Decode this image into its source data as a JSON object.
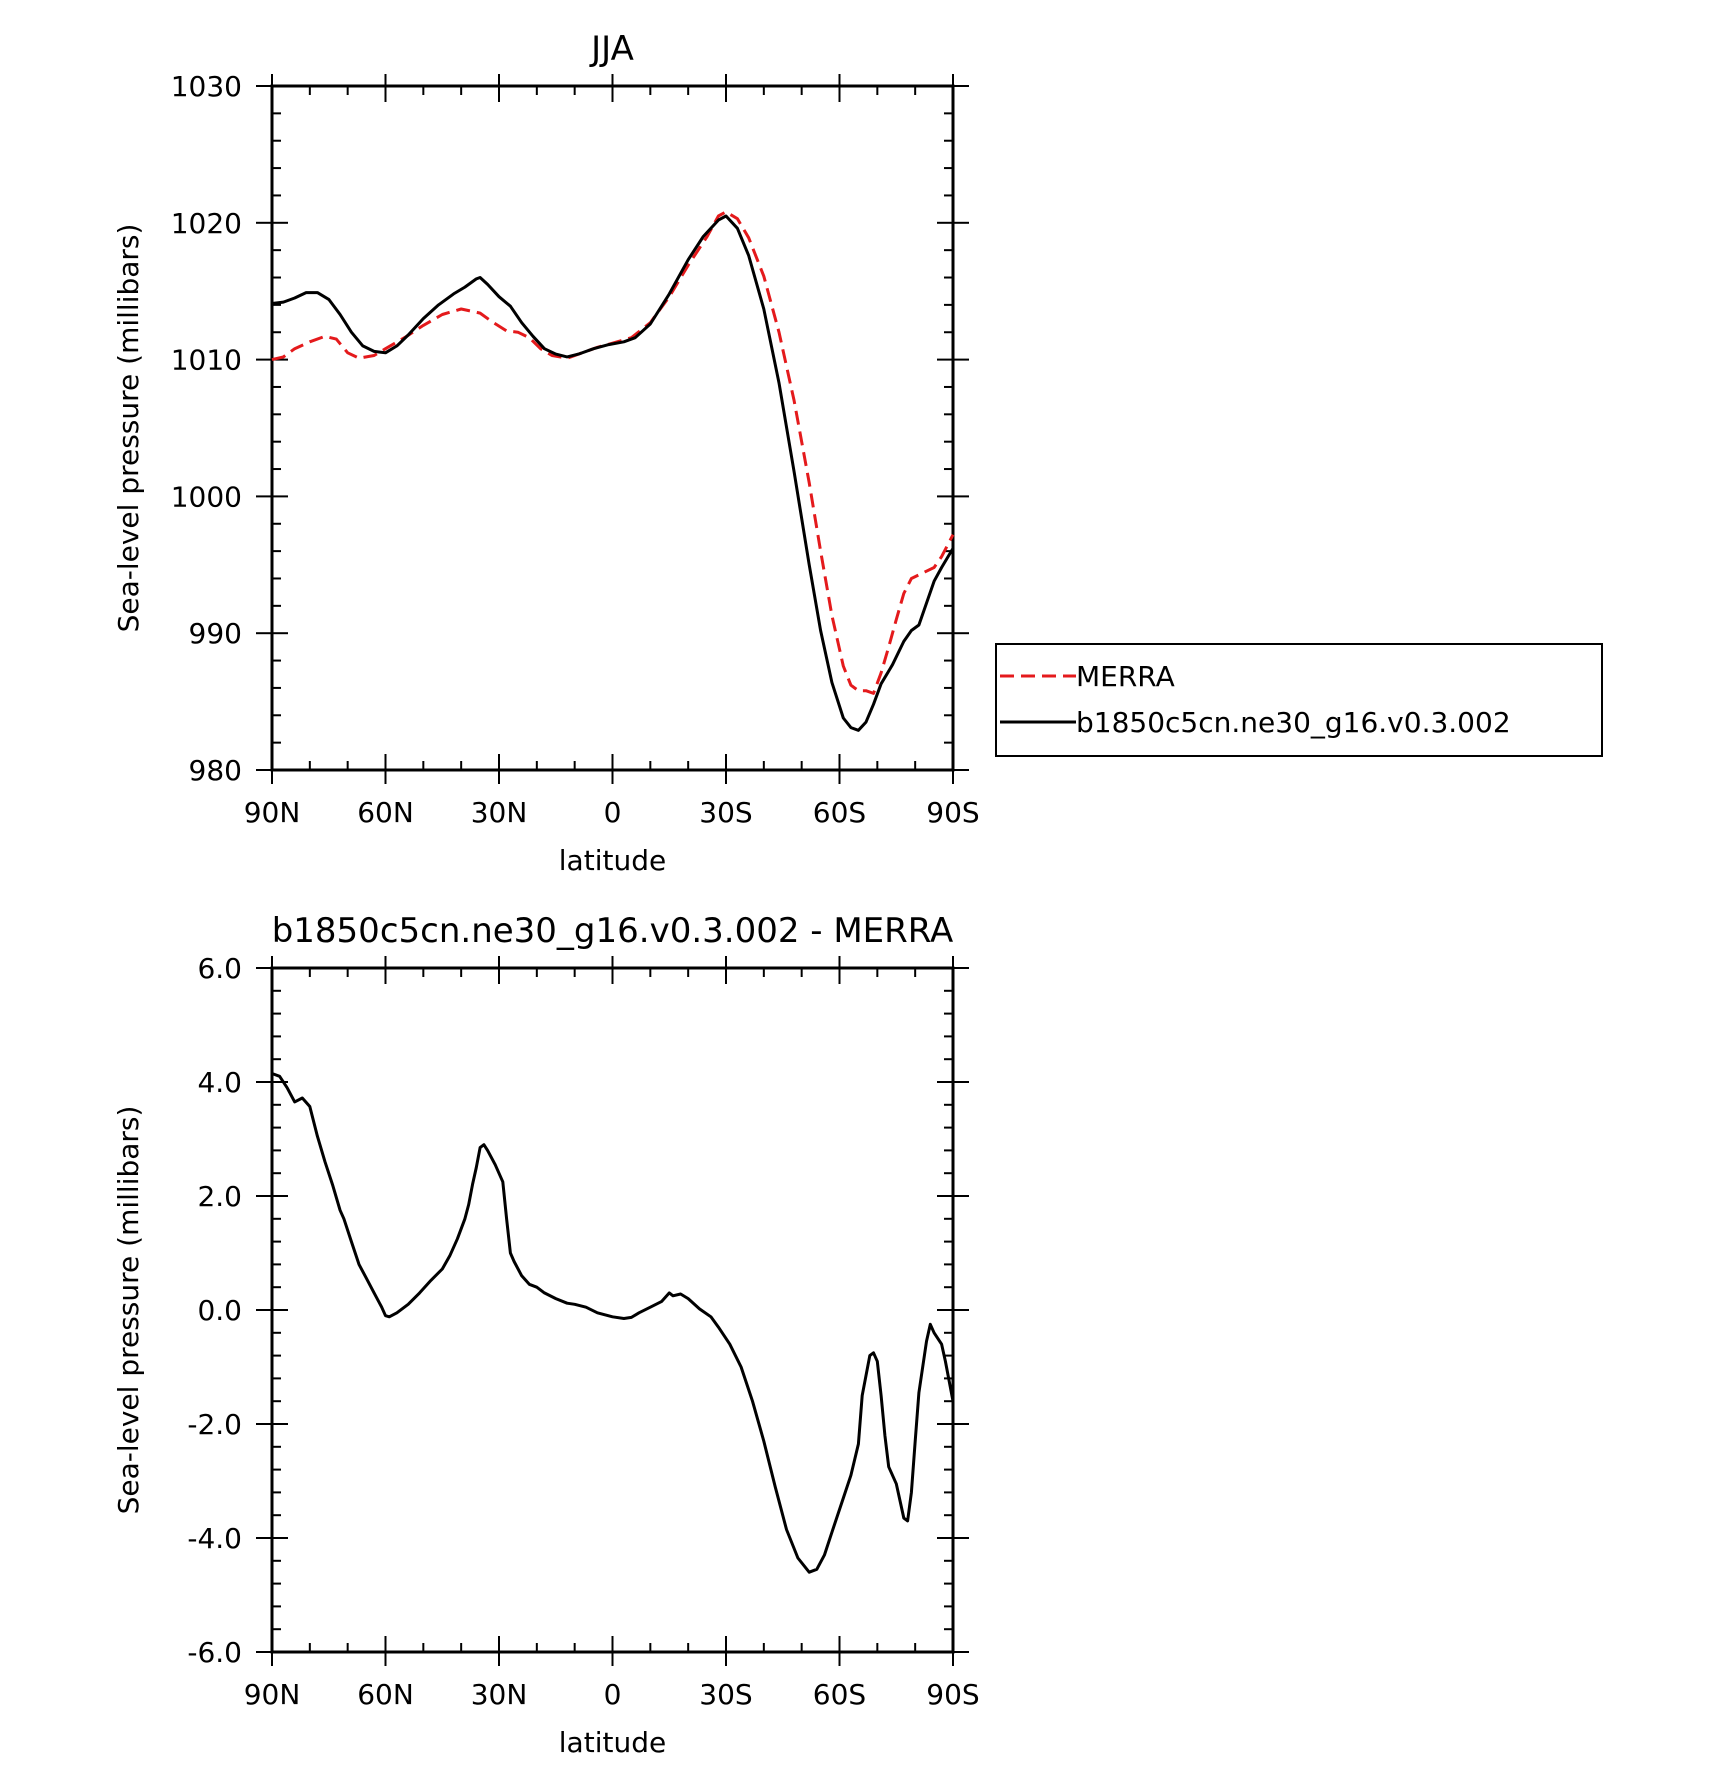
{
  "chart_data": [
    {
      "type": "line",
      "title": "JJA",
      "xlabel": "latitude",
      "ylabel": "Sea-level pressure (millibars)",
      "xlim": [
        90,
        -90
      ],
      "ylim": [
        980,
        1030
      ],
      "x_ticks": [
        90,
        60,
        30,
        0,
        -30,
        -60,
        -90
      ],
      "x_tick_labels": [
        "90N",
        "60N",
        "30N",
        "0",
        "30S",
        "60S",
        "90S"
      ],
      "y_ticks": [
        980,
        990,
        1000,
        1010,
        1020,
        1030
      ],
      "y_tick_labels": [
        "980",
        "990",
        "1000",
        "1010",
        "1020",
        "1030"
      ],
      "legend": "right",
      "series": [
        {
          "name": "MERRA",
          "color": "#e41a1c",
          "style": "dashed",
          "points": [
            [
              90,
              1010
            ],
            [
              87,
              1010.2
            ],
            [
              84,
              1010.8
            ],
            [
              80,
              1011.3
            ],
            [
              76,
              1011.7
            ],
            [
              73,
              1011.5
            ],
            [
              70,
              1010.5
            ],
            [
              67,
              1010.1
            ],
            [
              63,
              1010.3
            ],
            [
              60,
              1010.8
            ],
            [
              55,
              1011.6
            ],
            [
              50,
              1012.5
            ],
            [
              45,
              1013.3
            ],
            [
              40,
              1013.7
            ],
            [
              35,
              1013.4
            ],
            [
              32,
              1012.8
            ],
            [
              28,
              1012.1
            ],
            [
              25,
              1012
            ],
            [
              22,
              1011.6
            ],
            [
              19,
              1010.8
            ],
            [
              16,
              1010.3
            ],
            [
              12,
              1010.1
            ],
            [
              8,
              1010.5
            ],
            [
              4,
              1010.9
            ],
            [
              0,
              1011.2
            ],
            [
              -5,
              1011.6
            ],
            [
              -10,
              1012.7
            ],
            [
              -15,
              1014.6
            ],
            [
              -20,
              1016.9
            ],
            [
              -25,
              1019
            ],
            [
              -28,
              1020.5
            ],
            [
              -30,
              1020.8
            ],
            [
              -33,
              1020.3
            ],
            [
              -36,
              1018.9
            ],
            [
              -40,
              1016.1
            ],
            [
              -44,
              1012
            ],
            [
              -48,
              1007
            ],
            [
              -52,
              1001
            ],
            [
              -55,
              996
            ],
            [
              -58,
              991.3
            ],
            [
              -61,
              987.6
            ],
            [
              -63,
              986.2
            ],
            [
              -65,
              985.8
            ],
            [
              -67,
              985.8
            ],
            [
              -69,
              985.6
            ],
            [
              -71,
              987.1
            ],
            [
              -73,
              989
            ],
            [
              -75,
              991
            ],
            [
              -77,
              992.9
            ],
            [
              -79,
              994
            ],
            [
              -82,
              994.4
            ],
            [
              -85,
              994.8
            ],
            [
              -87,
              995.6
            ],
            [
              -90,
              997.2
            ]
          ]
        },
        {
          "name": "b1850c5cn.ne30_g16.v0.3.002",
          "color": "#000000",
          "style": "solid",
          "points": [
            [
              90,
              1014.1
            ],
            [
              87,
              1014.2
            ],
            [
              84,
              1014.5
            ],
            [
              81,
              1014.9
            ],
            [
              78,
              1014.9
            ],
            [
              75,
              1014.4
            ],
            [
              72,
              1013.3
            ],
            [
              69,
              1012
            ],
            [
              66,
              1011
            ],
            [
              63,
              1010.6
            ],
            [
              60,
              1010.5
            ],
            [
              57,
              1011
            ],
            [
              54,
              1011.8
            ],
            [
              50,
              1013
            ],
            [
              46,
              1014
            ],
            [
              42,
              1014.8
            ],
            [
              39,
              1015.3
            ],
            [
              36,
              1015.9
            ],
            [
              35,
              1016
            ],
            [
              33,
              1015.5
            ],
            [
              30,
              1014.6
            ],
            [
              27,
              1013.9
            ],
            [
              24,
              1012.7
            ],
            [
              21,
              1011.7
            ],
            [
              18,
              1010.8
            ],
            [
              15,
              1010.4
            ],
            [
              12,
              1010.2
            ],
            [
              9,
              1010.4
            ],
            [
              5,
              1010.8
            ],
            [
              1,
              1011.1
            ],
            [
              -3,
              1011.3
            ],
            [
              -6,
              1011.6
            ],
            [
              -10,
              1012.6
            ],
            [
              -15,
              1014.8
            ],
            [
              -20,
              1017.3
            ],
            [
              -24,
              1019
            ],
            [
              -28,
              1020.2
            ],
            [
              -30,
              1020.5
            ],
            [
              -33,
              1019.6
            ],
            [
              -36,
              1017.6
            ],
            [
              -40,
              1013.7
            ],
            [
              -44,
              1008.3
            ],
            [
              -48,
              1001.8
            ],
            [
              -52,
              995
            ],
            [
              -55,
              990.2
            ],
            [
              -58,
              986.4
            ],
            [
              -61,
              983.8
            ],
            [
              -63,
              983.1
            ],
            [
              -65,
              982.9
            ],
            [
              -67,
              983.5
            ],
            [
              -69,
              984.8
            ],
            [
              -71,
              986.3
            ],
            [
              -74,
              987.7
            ],
            [
              -77,
              989.4
            ],
            [
              -79,
              990.2
            ],
            [
              -81,
              990.6
            ],
            [
              -83,
              992.2
            ],
            [
              -85,
              993.8
            ],
            [
              -87,
              994.8
            ],
            [
              -90,
              996.2
            ]
          ]
        }
      ]
    },
    {
      "type": "line",
      "title": "b1850c5cn.ne30_g16.v0.3.002 - MERRA",
      "xlabel": "latitude",
      "ylabel": "Sea-level pressure (millibars)",
      "xlim": [
        90,
        -90
      ],
      "ylim": [
        -6,
        6
      ],
      "x_ticks": [
        90,
        60,
        30,
        0,
        -30,
        -60,
        -90
      ],
      "x_tick_labels": [
        "90N",
        "60N",
        "30N",
        "0",
        "30S",
        "60S",
        "90S"
      ],
      "y_ticks": [
        -6,
        -4,
        -2,
        0,
        2,
        4,
        6
      ],
      "y_tick_labels": [
        "-6.0",
        "-4.0",
        "-2.0",
        "0.0",
        "2.0",
        "4.0",
        "6.0"
      ],
      "series": [
        {
          "color": "#000000",
          "style": "solid",
          "points": [
            [
              90,
              4.15
            ],
            [
              88,
              4.1
            ],
            [
              86,
              3.9
            ],
            [
              84,
              3.65
            ],
            [
              82,
              3.72
            ],
            [
              80,
              3.57
            ],
            [
              78,
              3.05
            ],
            [
              76,
              2.6
            ],
            [
              74,
              2.2
            ],
            [
              72,
              1.75
            ],
            [
              71,
              1.6
            ],
            [
              69,
              1.2
            ],
            [
              67,
              0.8
            ],
            [
              65,
              0.55
            ],
            [
              63,
              0.3
            ],
            [
              61,
              0.05
            ],
            [
              60,
              -0.1
            ],
            [
              59,
              -0.12
            ],
            [
              57,
              -0.05
            ],
            [
              54,
              0.1
            ],
            [
              51,
              0.3
            ],
            [
              48,
              0.52
            ],
            [
              45,
              0.72
            ],
            [
              43,
              0.95
            ],
            [
              41,
              1.25
            ],
            [
              39,
              1.6
            ],
            [
              38,
              1.85
            ],
            [
              37,
              2.2
            ],
            [
              36,
              2.5
            ],
            [
              35,
              2.85
            ],
            [
              34,
              2.9
            ],
            [
              33,
              2.8
            ],
            [
              31,
              2.55
            ],
            [
              29,
              2.25
            ],
            [
              28,
              1.6
            ],
            [
              27,
              1
            ],
            [
              26,
              0.85
            ],
            [
              24,
              0.6
            ],
            [
              22,
              0.45
            ],
            [
              20,
              0.4
            ],
            [
              18,
              0.3
            ],
            [
              15,
              0.2
            ],
            [
              12,
              0.12
            ],
            [
              10,
              0.1
            ],
            [
              7,
              0.05
            ],
            [
              4,
              -0.05
            ],
            [
              0,
              -0.12
            ],
            [
              -3,
              -0.15
            ],
            [
              -5,
              -0.13
            ],
            [
              -7,
              -0.05
            ],
            [
              -10,
              0.05
            ],
            [
              -13,
              0.15
            ],
            [
              -15,
              0.3
            ],
            [
              -16,
              0.25
            ],
            [
              -18,
              0.28
            ],
            [
              -20,
              0.2
            ],
            [
              -23,
              0.02
            ],
            [
              -26,
              -0.12
            ],
            [
              -28,
              -0.3
            ],
            [
              -31,
              -0.6
            ],
            [
              -34,
              -1
            ],
            [
              -37,
              -1.6
            ],
            [
              -40,
              -2.3
            ],
            [
              -43,
              -3.1
            ],
            [
              -46,
              -3.85
            ],
            [
              -49,
              -4.35
            ],
            [
              -52,
              -4.6
            ],
            [
              -54,
              -4.55
            ],
            [
              -56,
              -4.3
            ],
            [
              -58,
              -3.9
            ],
            [
              -61,
              -3.3
            ],
            [
              -63,
              -2.9
            ],
            [
              -65,
              -2.35
            ],
            [
              -66,
              -1.5
            ],
            [
              -68,
              -0.8
            ],
            [
              -69,
              -0.75
            ],
            [
              -70,
              -0.9
            ],
            [
              -71,
              -1.5
            ],
            [
              -72,
              -2.2
            ],
            [
              -73,
              -2.75
            ],
            [
              -75,
              -3.05
            ],
            [
              -77,
              -3.65
            ],
            [
              -78,
              -3.7
            ],
            [
              -79,
              -3.2
            ],
            [
              -80,
              -2.3
            ],
            [
              -81,
              -1.45
            ],
            [
              -83,
              -0.55
            ],
            [
              -84,
              -0.25
            ],
            [
              -85,
              -0.4
            ],
            [
              -87,
              -0.6
            ],
            [
              -88,
              -0.9
            ],
            [
              -90,
              -1.6
            ]
          ]
        }
      ]
    }
  ]
}
